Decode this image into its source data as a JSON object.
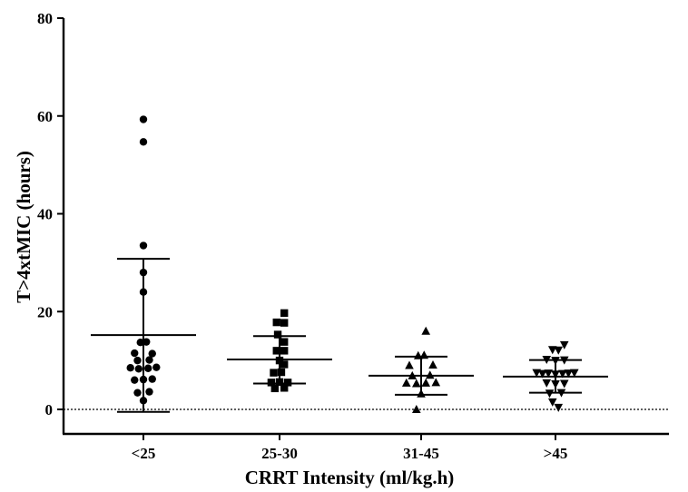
{
  "chart_data": {
    "type": "scatter",
    "title": "",
    "xlabel": "CRRT Intensity (ml/kg.h)",
    "ylabel": "T>4xtMIC (hours)",
    "ylim": [
      0,
      80
    ],
    "yticks": [
      0,
      20,
      40,
      60,
      80
    ],
    "categories": [
      "<25",
      "25-30",
      "31-45",
      ">45"
    ],
    "reference_line": {
      "y": 0,
      "style": "dotted"
    },
    "series": [
      {
        "category": "<25",
        "marker": "circle",
        "mean": 15.2,
        "sd_low": -0.5,
        "sd_high": 30.8,
        "points": [
          {
            "dx": 0,
            "y": 59.3
          },
          {
            "dx": 0,
            "y": 54.7
          },
          {
            "dx": 0,
            "y": 33.5
          },
          {
            "dx": 0,
            "y": 28.0
          },
          {
            "dx": 0,
            "y": 24.0
          },
          {
            "dx": -0.5,
            "y": 13.7
          },
          {
            "dx": 0.5,
            "y": 13.8
          },
          {
            "dx": -1.5,
            "y": 11.5
          },
          {
            "dx": 1.5,
            "y": 11.4
          },
          {
            "dx": -1,
            "y": 10.0
          },
          {
            "dx": 1,
            "y": 10.1
          },
          {
            "dx": -2.2,
            "y": 8.5
          },
          {
            "dx": -0.8,
            "y": 8.3
          },
          {
            "dx": 0.8,
            "y": 8.4
          },
          {
            "dx": 2.2,
            "y": 8.6
          },
          {
            "dx": -1.5,
            "y": 6.0
          },
          {
            "dx": 0,
            "y": 6.1
          },
          {
            "dx": 1.5,
            "y": 6.2
          },
          {
            "dx": -1,
            "y": 3.4
          },
          {
            "dx": 1,
            "y": 3.6
          },
          {
            "dx": 0,
            "y": 1.8
          }
        ]
      },
      {
        "category": "25-30",
        "marker": "square",
        "mean": 10.2,
        "sd_low": 5.3,
        "sd_high": 15.0,
        "points": [
          {
            "dx": 0.8,
            "y": 19.7
          },
          {
            "dx": -0.5,
            "y": 17.8
          },
          {
            "dx": 0.8,
            "y": 17.7
          },
          {
            "dx": -0.3,
            "y": 15.3
          },
          {
            "dx": 0.8,
            "y": 13.8
          },
          {
            "dx": -0.5,
            "y": 12.0
          },
          {
            "dx": 0.8,
            "y": 12.0
          },
          {
            "dx": 0,
            "y": 10.0
          },
          {
            "dx": 0.8,
            "y": 9.2
          },
          {
            "dx": -1,
            "y": 7.5
          },
          {
            "dx": 0.3,
            "y": 7.6
          },
          {
            "dx": -1.4,
            "y": 5.5
          },
          {
            "dx": 0,
            "y": 5.6
          },
          {
            "dx": 1.4,
            "y": 5.5
          },
          {
            "dx": -0.8,
            "y": 4.3
          },
          {
            "dx": 0.8,
            "y": 4.4
          }
        ]
      },
      {
        "category": "31-45",
        "marker": "triangle-up",
        "mean": 6.9,
        "sd_low": 3.0,
        "sd_high": 10.8,
        "points": [
          {
            "dx": 0.8,
            "y": 16.0
          },
          {
            "dx": -0.5,
            "y": 11.0
          },
          {
            "dx": 0.5,
            "y": 11.1
          },
          {
            "dx": -2,
            "y": 9.0
          },
          {
            "dx": 2,
            "y": 9.1
          },
          {
            "dx": -1.5,
            "y": 6.9
          },
          {
            "dx": 1.5,
            "y": 7.0
          },
          {
            "dx": -2.5,
            "y": 5.4
          },
          {
            "dx": -0.8,
            "y": 5.3
          },
          {
            "dx": 0.8,
            "y": 5.4
          },
          {
            "dx": 2.5,
            "y": 5.5
          },
          {
            "dx": 0,
            "y": 3.2
          },
          {
            "dx": -0.8,
            "y": 0.0
          }
        ]
      },
      {
        "category": ">45",
        "marker": "triangle-down",
        "mean": 6.7,
        "sd_low": 3.4,
        "sd_high": 10.1,
        "points": [
          {
            "dx": -0.5,
            "y": 12.2
          },
          {
            "dx": 0.5,
            "y": 12.1
          },
          {
            "dx": 1.5,
            "y": 13.2
          },
          {
            "dx": -1.5,
            "y": 10.2
          },
          {
            "dx": 0,
            "y": 10.0
          },
          {
            "dx": 1.5,
            "y": 10.1
          },
          {
            "dx": -3.2,
            "y": 7.5
          },
          {
            "dx": -2.2,
            "y": 7.3
          },
          {
            "dx": -1.2,
            "y": 7.4
          },
          {
            "dx": 0,
            "y": 7.2
          },
          {
            "dx": 1.2,
            "y": 7.3
          },
          {
            "dx": 2.2,
            "y": 7.4
          },
          {
            "dx": 3.2,
            "y": 7.5
          },
          {
            "dx": -1.5,
            "y": 5.4
          },
          {
            "dx": 0,
            "y": 5.2
          },
          {
            "dx": 1.5,
            "y": 5.3
          },
          {
            "dx": -1,
            "y": 3.3
          },
          {
            "dx": 1,
            "y": 3.4
          },
          {
            "dx": -0.5,
            "y": 1.5
          },
          {
            "dx": 0.5,
            "y": 0.4
          }
        ]
      }
    ]
  }
}
